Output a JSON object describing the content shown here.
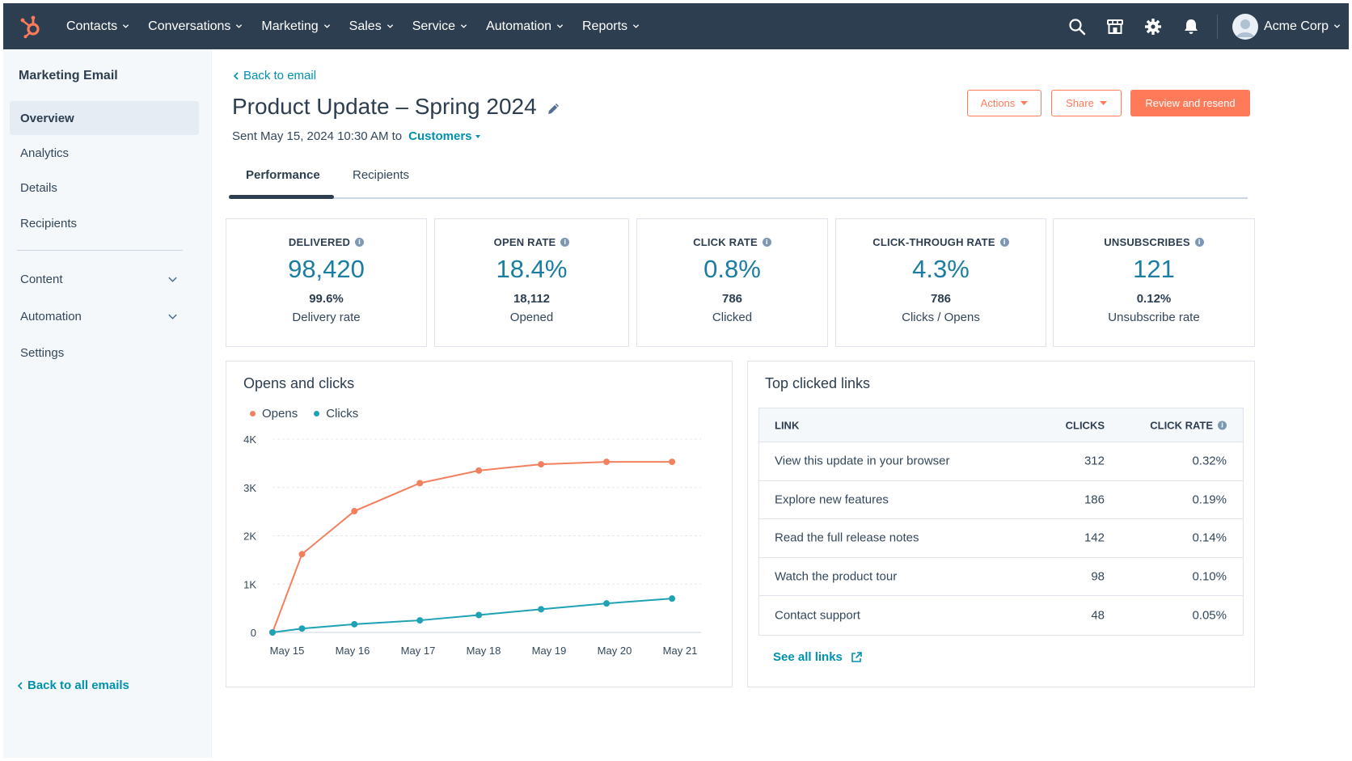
{
  "topnav": {
    "items": [
      "Contacts",
      "Conversations",
      "Marketing",
      "Sales",
      "Service",
      "Automation",
      "Reports"
    ],
    "account_name": "Acme Corp",
    "icons": [
      "hubspot-logo",
      "search-icon",
      "marketplace-icon",
      "settings-icon",
      "notifications-icon"
    ]
  },
  "sidebar": {
    "title": "Marketing Email",
    "items": [
      "Overview",
      "Analytics",
      "Details",
      "Recipients"
    ],
    "sections": [
      "Content",
      "Automation"
    ],
    "settings": "Settings",
    "back_link": "Back to all emails"
  },
  "header": {
    "back_link": "Back to email",
    "title": "Product Update – Spring 2024",
    "sent_text": "Sent May 15, 2024 10:30 AM to",
    "recipient_list": "Customers",
    "actions_button": "Actions",
    "share_button": "Share",
    "primary_button": "Review and resend"
  },
  "tabs": [
    "Performance",
    "Recipients"
  ],
  "stats": [
    {
      "label": "DELIVERED",
      "value": "98,420",
      "sub": "99.6%",
      "desc": "Delivery rate"
    },
    {
      "label": "OPEN RATE",
      "value": "18.4%",
      "sub": "18,112",
      "desc": "Opened"
    },
    {
      "label": "CLICK RATE",
      "value": "0.8%",
      "sub": "786",
      "desc": "Clicked"
    },
    {
      "label": "CLICK-THROUGH RATE",
      "value": "4.3%",
      "sub": "786",
      "desc": "Clicks / Opens"
    },
    {
      "label": "UNSUBSCRIBES",
      "value": "121",
      "sub": "0.12%",
      "desc": "Unsubscribe rate"
    }
  ],
  "opens_chart": {
    "title": "Opens and clicks"
  },
  "chart_data": {
    "type": "line",
    "categories": [
      "May 15",
      "May 16",
      "May 17",
      "May 18",
      "May 19",
      "May 20",
      "May 21"
    ],
    "x_points": [
      0,
      0.45,
      1,
      2,
      3,
      4,
      5,
      6,
      6.02
    ],
    "series": [
      {
        "name": "Opens",
        "color": "#f2805e",
        "x": [
          0,
          0.45,
          1.25,
          2.25,
          3.15,
          4.1,
          5.1,
          6.1
        ],
        "values": [
          0,
          1620,
          2510,
          3090,
          3350,
          3480,
          3530,
          3530
        ]
      },
      {
        "name": "Clicks",
        "color": "#1fa2b4",
        "x": [
          0,
          0.45,
          1.25,
          2.25,
          3.15,
          4.1,
          5.1,
          6.1
        ],
        "values": [
          0,
          80,
          170,
          250,
          360,
          480,
          600,
          700
        ]
      }
    ],
    "y_ticks": [
      "0",
      "1K",
      "2K",
      "3K",
      "4K"
    ],
    "ylim": [
      0,
      4000
    ],
    "grid": true,
    "legend": "top-left"
  },
  "links_table": {
    "title": "Top clicked links",
    "headers": {
      "link": "LINK",
      "clicks": "CLICKS",
      "rate": "CLICK RATE"
    },
    "rows": [
      {
        "link": "View this update in your browser",
        "clicks": "312",
        "rate": "0.32%"
      },
      {
        "link": "Explore new features",
        "clicks": "186",
        "rate": "0.19%"
      },
      {
        "link": "Read the full release notes",
        "clicks": "142",
        "rate": "0.14%"
      },
      {
        "link": "Watch the product tour",
        "clicks": "98",
        "rate": "0.10%"
      },
      {
        "link": "Contact support",
        "clicks": "48",
        "rate": "0.05%"
      }
    ],
    "see_all": "See all links"
  },
  "colors": {
    "nav_bg": "#2d3e50",
    "accent_orange": "#ff7a59",
    "link_teal": "#0091ae",
    "stat_value": "#1a7da1"
  }
}
